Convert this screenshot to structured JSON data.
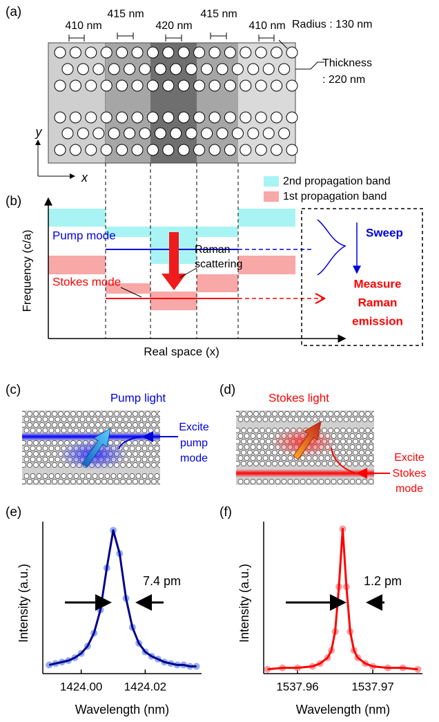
{
  "panel_a": {
    "label": "(a)",
    "periods": [
      "410 nm",
      "415 nm",
      "420 nm",
      "415 nm",
      "410 nm"
    ],
    "radius": "Radius : 130 nm",
    "thickness": [
      "Thickness",
      ": 220 nm"
    ],
    "axis_y": "y",
    "axis_x": "x"
  },
  "panel_b": {
    "label": "(b)",
    "legend": [
      "2nd propagation band",
      "1st propagation band"
    ],
    "y_label": "Frequency (c/a)",
    "x_label": "Real space (x)",
    "pump": "Pump mode",
    "stokes": "Stokes mode",
    "raman": [
      "Raman",
      "scattering"
    ],
    "sweep": "Sweep",
    "measure": [
      "Measure",
      "Raman",
      "emission"
    ]
  },
  "panel_c": {
    "label": "(c)",
    "title": "Pump light",
    "excite": [
      "Excite",
      "pump",
      "mode"
    ]
  },
  "panel_d": {
    "label": "(d)",
    "title": "Stokes light",
    "excite": [
      "Excite",
      "Stokes",
      "mode"
    ]
  },
  "chart_data": [
    {
      "type": "scatter",
      "panel_label": "(e)",
      "xlabel": "Wavelength (nm)",
      "ylabel": "Intensity (a.u.)",
      "annotation": "7.4 pm",
      "x": [
        1423.99,
        1423.992,
        1423.994,
        1423.996,
        1423.998,
        1424.0,
        1424.002,
        1424.004,
        1424.006,
        1424.008,
        1424.01,
        1424.012,
        1424.014,
        1424.016,
        1424.018,
        1424.02,
        1424.022,
        1424.024,
        1424.026,
        1424.028,
        1424.03,
        1424.032,
        1424.034,
        1424.036
      ],
      "series": [
        {
          "mode": "markers",
          "color": "#7090ee",
          "values": [
            0.06,
            0.07,
            0.08,
            0.09,
            0.11,
            0.14,
            0.19,
            0.28,
            0.44,
            0.73,
            0.99,
            0.83,
            0.52,
            0.32,
            0.21,
            0.15,
            0.12,
            0.1,
            0.08,
            0.07,
            0.06,
            0.06,
            0.05,
            0.05
          ]
        },
        {
          "mode": "line",
          "color": "#00008b",
          "values": [
            0.06,
            0.07,
            0.08,
            0.09,
            0.11,
            0.14,
            0.19,
            0.28,
            0.44,
            0.73,
            0.99,
            0.83,
            0.52,
            0.32,
            0.21,
            0.15,
            0.12,
            0.1,
            0.08,
            0.07,
            0.06,
            0.06,
            0.05,
            0.05
          ]
        }
      ],
      "xlim": [
        1423.988,
        1424.0376
      ],
      "xticks": [
        {
          "value": 1424,
          "label": "1424.00"
        },
        1424.02
      ],
      "ylim": [
        0,
        1.05
      ]
    },
    {
      "type": "scatter",
      "panel_label": "(f)",
      "xlabel": "Wavelength (nm)",
      "ylabel": "Intensity (a.u.)",
      "annotation": "1.2 pm",
      "x": [
        1537.956,
        1537.958,
        1537.96,
        1537.962,
        1537.963,
        1537.964,
        1537.9645,
        1537.965,
        1537.9655,
        1537.966,
        1537.9665,
        1537.967,
        1537.9675,
        1537.968,
        1537.969,
        1537.97,
        1537.972,
        1537.974,
        1537.976
      ],
      "series": [
        {
          "mode": "markers",
          "color": "#f08080",
          "values": [
            0.03,
            0.04,
            0.04,
            0.05,
            0.07,
            0.11,
            0.16,
            0.29,
            0.6,
            1.0,
            0.6,
            0.29,
            0.16,
            0.11,
            0.07,
            0.05,
            0.04,
            0.04,
            0.03
          ]
        },
        {
          "mode": "line",
          "color": "#ff0000",
          "values": [
            0.03,
            0.04,
            0.04,
            0.05,
            0.07,
            0.11,
            0.16,
            0.29,
            0.6,
            1.0,
            0.6,
            0.29,
            0.16,
            0.11,
            0.07,
            0.05,
            0.04,
            0.04,
            0.03
          ]
        }
      ],
      "xlim": [
        1537.9555,
        1537.9766
      ],
      "xticks": [
        1537.96,
        1537.97
      ],
      "ylim": [
        0,
        1.05
      ]
    }
  ]
}
